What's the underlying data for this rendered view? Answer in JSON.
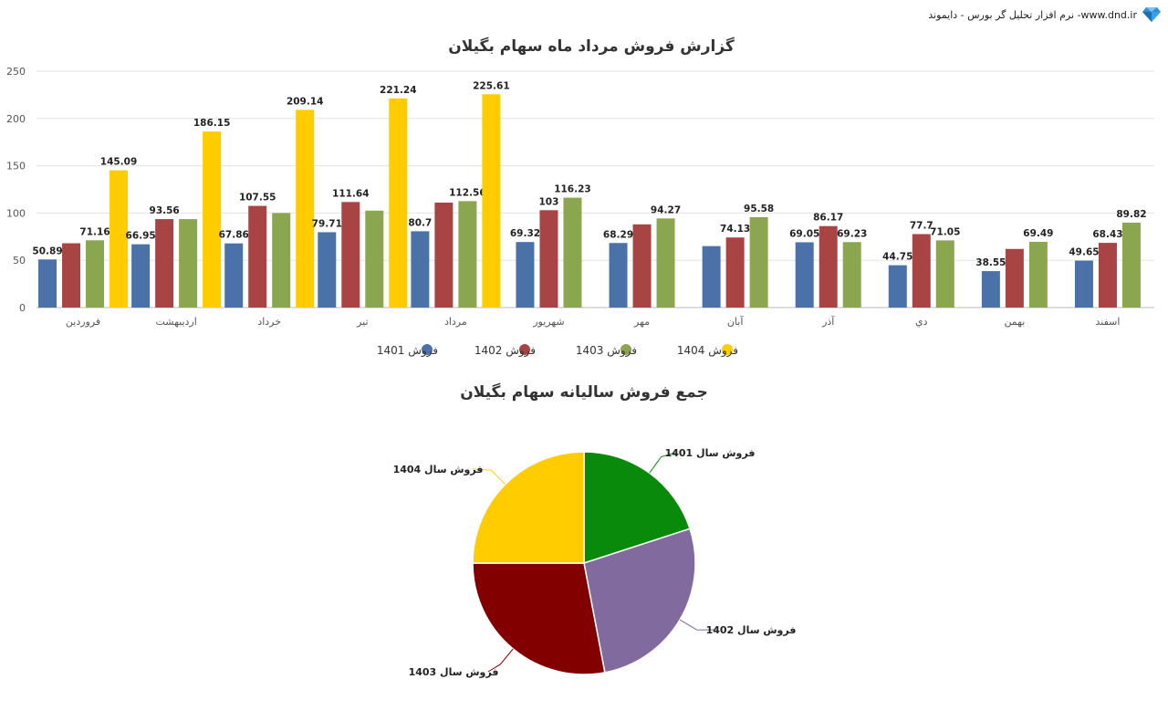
{
  "brand": {
    "text": "نرم افزار تحلیل گر بورس - دایموند -www.dnd.ir",
    "icon": "diamond-icon"
  },
  "chart_data": [
    {
      "type": "bar",
      "title": "گزارش فروش مرداد ماه سهام بگیلان",
      "ylim": [
        0,
        250
      ],
      "yticks": [
        0,
        50,
        100,
        150,
        200,
        250
      ],
      "grid": true,
      "legend_position": "bottom",
      "categories": [
        "فروردين",
        "ارديبهشت",
        "خرداد",
        "تير",
        "مرداد",
        "شهريور",
        "مهر",
        "آبان",
        "آذر",
        "دي",
        "بهمن",
        "اسفند"
      ],
      "series": [
        {
          "name": "فروش 1401",
          "color": "#4a72a8",
          "values": [
            50.89,
            66.95,
            67.86,
            79.71,
            80.7,
            69.32,
            68.29,
            65,
            69.05,
            44.75,
            38.55,
            49.65
          ],
          "labels": [
            "50.89",
            "66.95",
            "67.86",
            "79.71",
            "80.7",
            "69.32",
            "68.29",
            "",
            "69.05",
            "44.75",
            "38.55",
            "49.65"
          ]
        },
        {
          "name": "فروش 1402",
          "color": "#a94444",
          "values": [
            68,
            93.56,
            107.55,
            111.64,
            111,
            103,
            88,
            74.13,
            86.17,
            77.7,
            62,
            68.43
          ],
          "labels": [
            "",
            "93.56",
            "107.55",
            "111.64",
            "",
            "103",
            "",
            "74.13",
            "86.17",
            "77.7",
            "",
            "68.43"
          ]
        },
        {
          "name": "فروش 1403",
          "color": "#8aa64e",
          "values": [
            71.16,
            93.56,
            100,
            102.5,
            112.56,
            116.23,
            94.27,
            95.58,
            69.23,
            71.05,
            69.49,
            89.82
          ],
          "labels": [
            "71.16",
            "",
            "",
            "",
            "112.56",
            "116.23",
            "94.27",
            "95.58",
            "69.23",
            "71.05",
            "69.49",
            "89.82"
          ]
        },
        {
          "name": "فروش 1404",
          "color": "#ffcc00",
          "values": [
            145.09,
            186.15,
            209.14,
            221.24,
            225.61,
            null,
            null,
            null,
            null,
            null,
            null,
            null
          ],
          "labels": [
            "145.09",
            "186.15",
            "209.14",
            "221.24",
            "225.61",
            "",
            "",
            "",
            "",
            "",
            "",
            ""
          ]
        }
      ]
    },
    {
      "type": "pie",
      "title": "جمع فروش سالیانه سهام بگیلان",
      "slices": [
        {
          "label": "فروش سال 1401",
          "value": 20,
          "color": "#0a8a0a"
        },
        {
          "label": "فروش سال 1402",
          "value": 27,
          "color": "#806a9e"
        },
        {
          "label": "فروش سال 1403",
          "value": 28,
          "color": "#820000"
        },
        {
          "label": "فروش سال 1404",
          "value": 25,
          "color": "#ffcc00"
        }
      ]
    }
  ]
}
